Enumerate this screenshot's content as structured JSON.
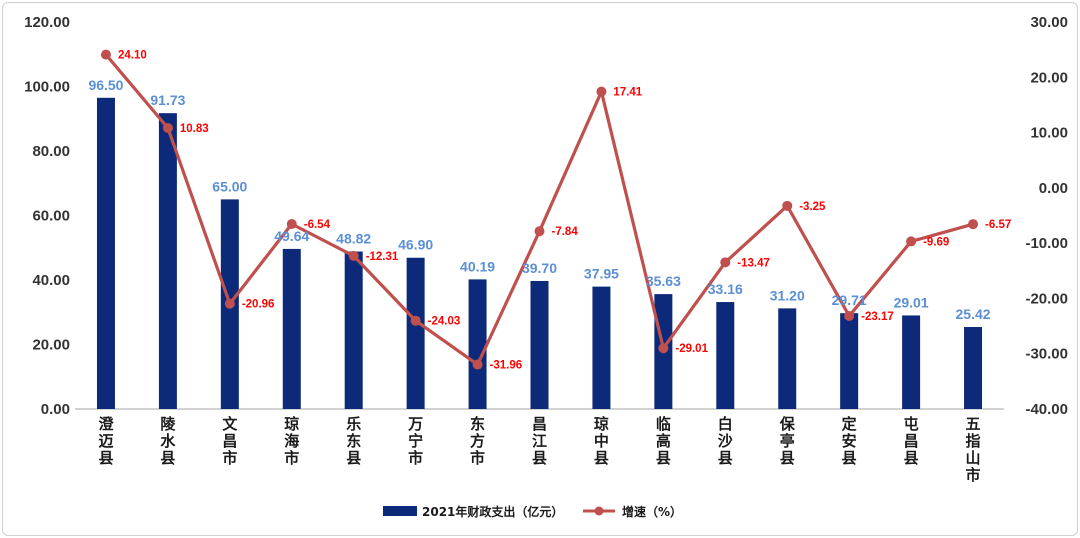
{
  "chart_data": {
    "type": "bar+line",
    "categories": [
      "澄迈县",
      "陵水县",
      "文昌市",
      "琼海市",
      "乐东县",
      "万宁市",
      "东方市",
      "昌江县",
      "琼中县",
      "临高县",
      "白沙县",
      "保亭县",
      "定安县",
      "屯昌县",
      "五指山市"
    ],
    "series": [
      {
        "name": "2021年财政支出（亿元）",
        "type": "bar",
        "axis": "left",
        "values": [
          96.5,
          91.73,
          65.0,
          49.64,
          48.82,
          46.9,
          40.19,
          39.7,
          37.95,
          35.63,
          33.16,
          31.2,
          29.71,
          29.01,
          25.42
        ],
        "labels": [
          "96.50",
          "91.73",
          "65.00",
          "49.64",
          "48.82",
          "46.90",
          "40.19",
          "39.70",
          "37.95",
          "35.63",
          "33.16",
          "31.20",
          "29.71",
          "29.01",
          "25.42"
        ]
      },
      {
        "name": "增速（%）",
        "type": "line",
        "axis": "right",
        "values": [
          24.1,
          10.83,
          -20.96,
          -6.54,
          -12.31,
          -24.03,
          -31.96,
          -7.84,
          17.41,
          -29.01,
          -13.47,
          -3.25,
          -23.17,
          -9.69,
          -6.57
        ],
        "labels": [
          "24.10",
          "10.83",
          "-20.96",
          "-6.54",
          "-12.31",
          "-24.03",
          "-31.96",
          "-7.84",
          "17.41",
          "-29.01",
          "-13.47",
          "-3.25",
          "-23.17",
          "-9.69",
          "-6.57"
        ]
      }
    ],
    "y_left": {
      "ylim": [
        0,
        120
      ],
      "ticks": [
        0,
        20,
        40,
        60,
        80,
        100,
        120
      ],
      "tick_labels": [
        "0.00",
        "20.00",
        "40.00",
        "60.00",
        "80.00",
        "100.00",
        "120.00"
      ]
    },
    "y_right": {
      "ylim": [
        -40,
        30
      ],
      "ticks": [
        -40,
        -30,
        -20,
        -10,
        0,
        10,
        20,
        30
      ],
      "tick_labels": [
        "-40.00",
        "-30.00",
        "-20.00",
        "-10.00",
        "0.00",
        "10.00",
        "20.00",
        "30.00"
      ]
    },
    "grid": false,
    "legend": "bottom-center",
    "colors": {
      "bar": "#0d2a7a",
      "bar_label": "#5b8fd6",
      "line": "#c0504d",
      "line_label": "#ff0000"
    }
  }
}
